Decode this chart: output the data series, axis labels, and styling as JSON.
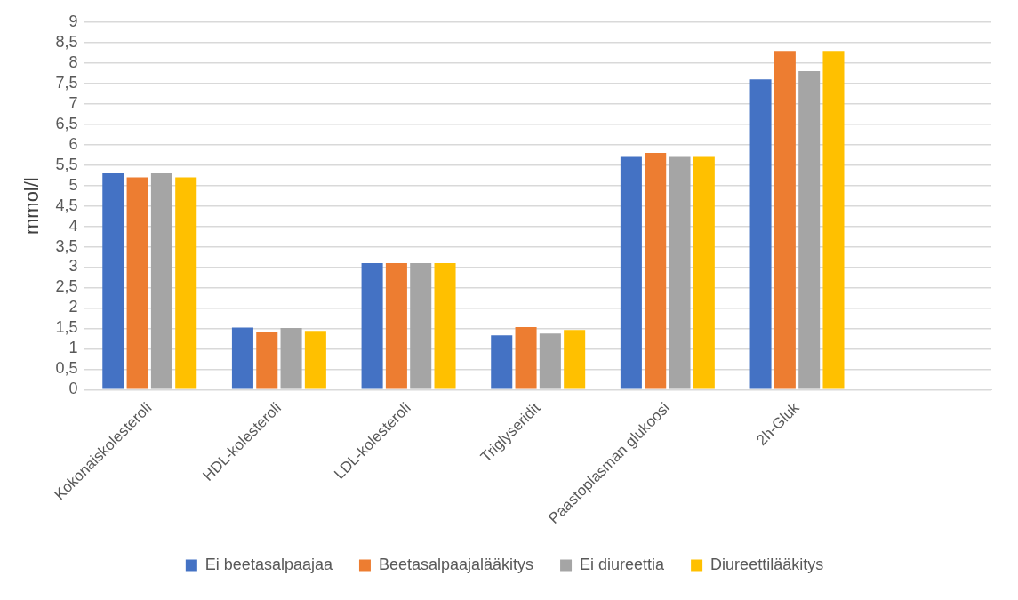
{
  "chart_data": {
    "type": "bar",
    "ylabel": "mmol/l",
    "categories": [
      "Kokonaiskolesteroli",
      "HDL-kolesteroli",
      "LDL-kolesteroli",
      "Triglyseridit",
      "Paastoplasman glukoosi",
      "2h-Gluk",
      null
    ],
    "series": [
      {
        "name": "Ei beetasalpaajaa",
        "color": "#4472c4",
        "values": [
          5.3,
          1.52,
          3.1,
          1.33,
          5.7,
          7.6,
          null
        ]
      },
      {
        "name": "Beetasalpaajalääkitys",
        "color": "#ed7d31",
        "values": [
          5.2,
          1.42,
          3.1,
          1.53,
          5.8,
          8.3,
          null
        ]
      },
      {
        "name": "Ei diureettia",
        "color": "#a5a5a5",
        "values": [
          5.3,
          1.51,
          3.1,
          1.37,
          5.7,
          7.8,
          null
        ]
      },
      {
        "name": "Diureettilääkitys",
        "color": "#ffc000",
        "values": [
          5.2,
          1.44,
          3.1,
          1.46,
          5.7,
          8.3,
          null
        ]
      }
    ],
    "ylim": [
      0,
      9
    ],
    "yticks": [
      0,
      {
        "value": 0.5,
        "label": "0,5"
      },
      1,
      {
        "value": 1.5,
        "label": "1,5"
      },
      2,
      {
        "value": 2.5,
        "label": "2,5"
      },
      3,
      {
        "value": 3.5,
        "label": "3,5"
      },
      4,
      {
        "value": 4.5,
        "label": "4,5"
      },
      5,
      {
        "value": 5.5,
        "label": "5,5"
      },
      6,
      {
        "value": 6.5,
        "label": "6,5"
      },
      7,
      {
        "value": 7.5,
        "label": "7,5"
      },
      8,
      {
        "value": 8.5,
        "label": "8,5"
      },
      9
    ],
    "grid": "y",
    "legend": "bottom"
  }
}
